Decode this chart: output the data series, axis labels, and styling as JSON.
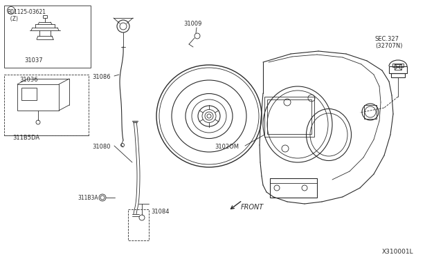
{
  "bg_color": "#ffffff",
  "line_color": "#2a2a2a",
  "fig_width": 6.4,
  "fig_height": 3.72,
  "dpi": 100,
  "labels": {
    "B_bolt": "B01125-03621\n  (Z)",
    "p31037": "31037",
    "p31036": "31036",
    "p311B5DA": "311B5DA",
    "p31086": "31086",
    "p31009": "31009",
    "p31080": "31080",
    "p3102OM": "3102OM",
    "p311B3A": "311B3A",
    "p31084": "31084",
    "sec327": "SEC.327\n(32707N)",
    "front": "FRONT",
    "diagram_id": "X310001L"
  }
}
